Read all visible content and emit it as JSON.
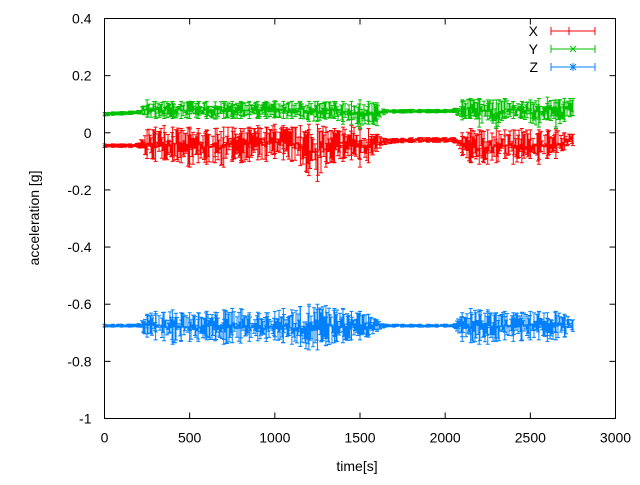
{
  "chart_data": {
    "type": "line",
    "title": "",
    "xlabel": "time[s]",
    "ylabel": "acceleration [g]",
    "xlim": [
      0,
      3000
    ],
    "ylim": [
      -1,
      0.4
    ],
    "xticks": [
      "0",
      "500",
      "1000",
      "1500",
      "2000",
      "2500",
      "3000"
    ],
    "yticks": [
      "0.4",
      "0.2",
      "0",
      "-0.2",
      "-0.4",
      "-0.6",
      "-0.8",
      "-1"
    ],
    "grid": false,
    "legend_position": "top-right",
    "error_bars": true,
    "x": [
      0,
      50,
      100,
      150,
      200,
      250,
      300,
      350,
      400,
      450,
      500,
      550,
      600,
      650,
      700,
      750,
      800,
      850,
      900,
      950,
      1000,
      1050,
      1100,
      1150,
      1200,
      1250,
      1300,
      1350,
      1400,
      1450,
      1500,
      1550,
      1600,
      1650,
      1700,
      1750,
      1800,
      1850,
      1900,
      1950,
      2000,
      2050,
      2100,
      2150,
      2200,
      2250,
      2300,
      2350,
      2400,
      2450,
      2500,
      2550,
      2600,
      2650,
      2700,
      2750
    ],
    "series": [
      {
        "name": "X",
        "color": "#ff0000",
        "marker": "plus",
        "values": [
          -0.045,
          -0.045,
          -0.045,
          -0.045,
          -0.044,
          -0.04,
          -0.04,
          -0.035,
          -0.04,
          -0.045,
          -0.05,
          -0.045,
          -0.05,
          -0.045,
          -0.05,
          -0.04,
          -0.045,
          -0.04,
          -0.035,
          -0.04,
          -0.03,
          -0.035,
          -0.04,
          -0.045,
          -0.06,
          -0.07,
          -0.05,
          -0.045,
          -0.04,
          -0.035,
          -0.05,
          -0.045,
          -0.035,
          -0.03,
          -0.028,
          -0.027,
          -0.026,
          -0.025,
          -0.025,
          -0.025,
          -0.025,
          -0.025,
          -0.04,
          -0.045,
          -0.05,
          -0.05,
          -0.045,
          -0.04,
          -0.05,
          -0.045,
          -0.04,
          -0.05,
          -0.04,
          -0.04,
          -0.03,
          -0.025
        ],
        "spread": [
          0.006,
          0.006,
          0.006,
          0.006,
          0.008,
          0.05,
          0.06,
          0.06,
          0.06,
          0.06,
          0.07,
          0.06,
          0.06,
          0.06,
          0.07,
          0.06,
          0.06,
          0.06,
          0.06,
          0.06,
          0.06,
          0.06,
          0.06,
          0.07,
          0.09,
          0.1,
          0.07,
          0.06,
          0.06,
          0.06,
          0.07,
          0.06,
          0.03,
          0.01,
          0.008,
          0.008,
          0.008,
          0.008,
          0.008,
          0.008,
          0.008,
          0.008,
          0.04,
          0.06,
          0.06,
          0.06,
          0.06,
          0.05,
          0.06,
          0.06,
          0.05,
          0.06,
          0.05,
          0.05,
          0.03,
          0.02
        ]
      },
      {
        "name": "Y",
        "color": "#00c000",
        "marker": "cross",
        "values": [
          0.065,
          0.067,
          0.068,
          0.07,
          0.072,
          0.085,
          0.08,
          0.08,
          0.08,
          0.08,
          0.08,
          0.08,
          0.08,
          0.078,
          0.08,
          0.08,
          0.08,
          0.08,
          0.08,
          0.08,
          0.082,
          0.08,
          0.08,
          0.08,
          0.075,
          0.075,
          0.078,
          0.08,
          0.07,
          0.07,
          0.065,
          0.07,
          0.065,
          0.075,
          0.075,
          0.075,
          0.076,
          0.076,
          0.076,
          0.076,
          0.076,
          0.077,
          0.08,
          0.085,
          0.07,
          0.08,
          0.065,
          0.085,
          0.08,
          0.08,
          0.075,
          0.07,
          0.085,
          0.065,
          0.08,
          0.09
        ],
        "spread": [
          0.006,
          0.006,
          0.006,
          0.006,
          0.006,
          0.03,
          0.03,
          0.03,
          0.03,
          0.03,
          0.03,
          0.03,
          0.03,
          0.03,
          0.03,
          0.03,
          0.03,
          0.03,
          0.03,
          0.03,
          0.03,
          0.03,
          0.03,
          0.03,
          0.035,
          0.035,
          0.03,
          0.03,
          0.04,
          0.04,
          0.05,
          0.04,
          0.04,
          0.006,
          0.006,
          0.006,
          0.006,
          0.006,
          0.006,
          0.006,
          0.006,
          0.006,
          0.035,
          0.035,
          0.05,
          0.035,
          0.05,
          0.035,
          0.03,
          0.03,
          0.04,
          0.05,
          0.04,
          0.05,
          0.04,
          0.03
        ]
      },
      {
        "name": "Z",
        "color": "#0080ff",
        "marker": "star",
        "values": [
          -0.675,
          -0.675,
          -0.675,
          -0.675,
          -0.674,
          -0.675,
          -0.675,
          -0.678,
          -0.68,
          -0.68,
          -0.68,
          -0.68,
          -0.675,
          -0.678,
          -0.68,
          -0.675,
          -0.676,
          -0.68,
          -0.678,
          -0.68,
          -0.675,
          -0.675,
          -0.68,
          -0.678,
          -0.68,
          -0.68,
          -0.675,
          -0.675,
          -0.675,
          -0.675,
          -0.675,
          -0.675,
          -0.675,
          -0.675,
          -0.675,
          -0.675,
          -0.675,
          -0.675,
          -0.675,
          -0.675,
          -0.675,
          -0.675,
          -0.68,
          -0.675,
          -0.68,
          -0.68,
          -0.68,
          -0.675,
          -0.68,
          -0.678,
          -0.675,
          -0.675,
          -0.68,
          -0.675,
          -0.675,
          -0.675
        ],
        "spread": [
          0.005,
          0.005,
          0.005,
          0.005,
          0.006,
          0.04,
          0.05,
          0.05,
          0.06,
          0.05,
          0.05,
          0.05,
          0.05,
          0.05,
          0.06,
          0.06,
          0.06,
          0.05,
          0.05,
          0.05,
          0.05,
          0.06,
          0.06,
          0.07,
          0.08,
          0.08,
          0.07,
          0.06,
          0.06,
          0.05,
          0.05,
          0.04,
          0.02,
          0.005,
          0.005,
          0.005,
          0.005,
          0.005,
          0.005,
          0.005,
          0.005,
          0.005,
          0.05,
          0.06,
          0.06,
          0.06,
          0.05,
          0.05,
          0.05,
          0.05,
          0.05,
          0.05,
          0.05,
          0.05,
          0.04,
          0.02
        ]
      }
    ]
  }
}
